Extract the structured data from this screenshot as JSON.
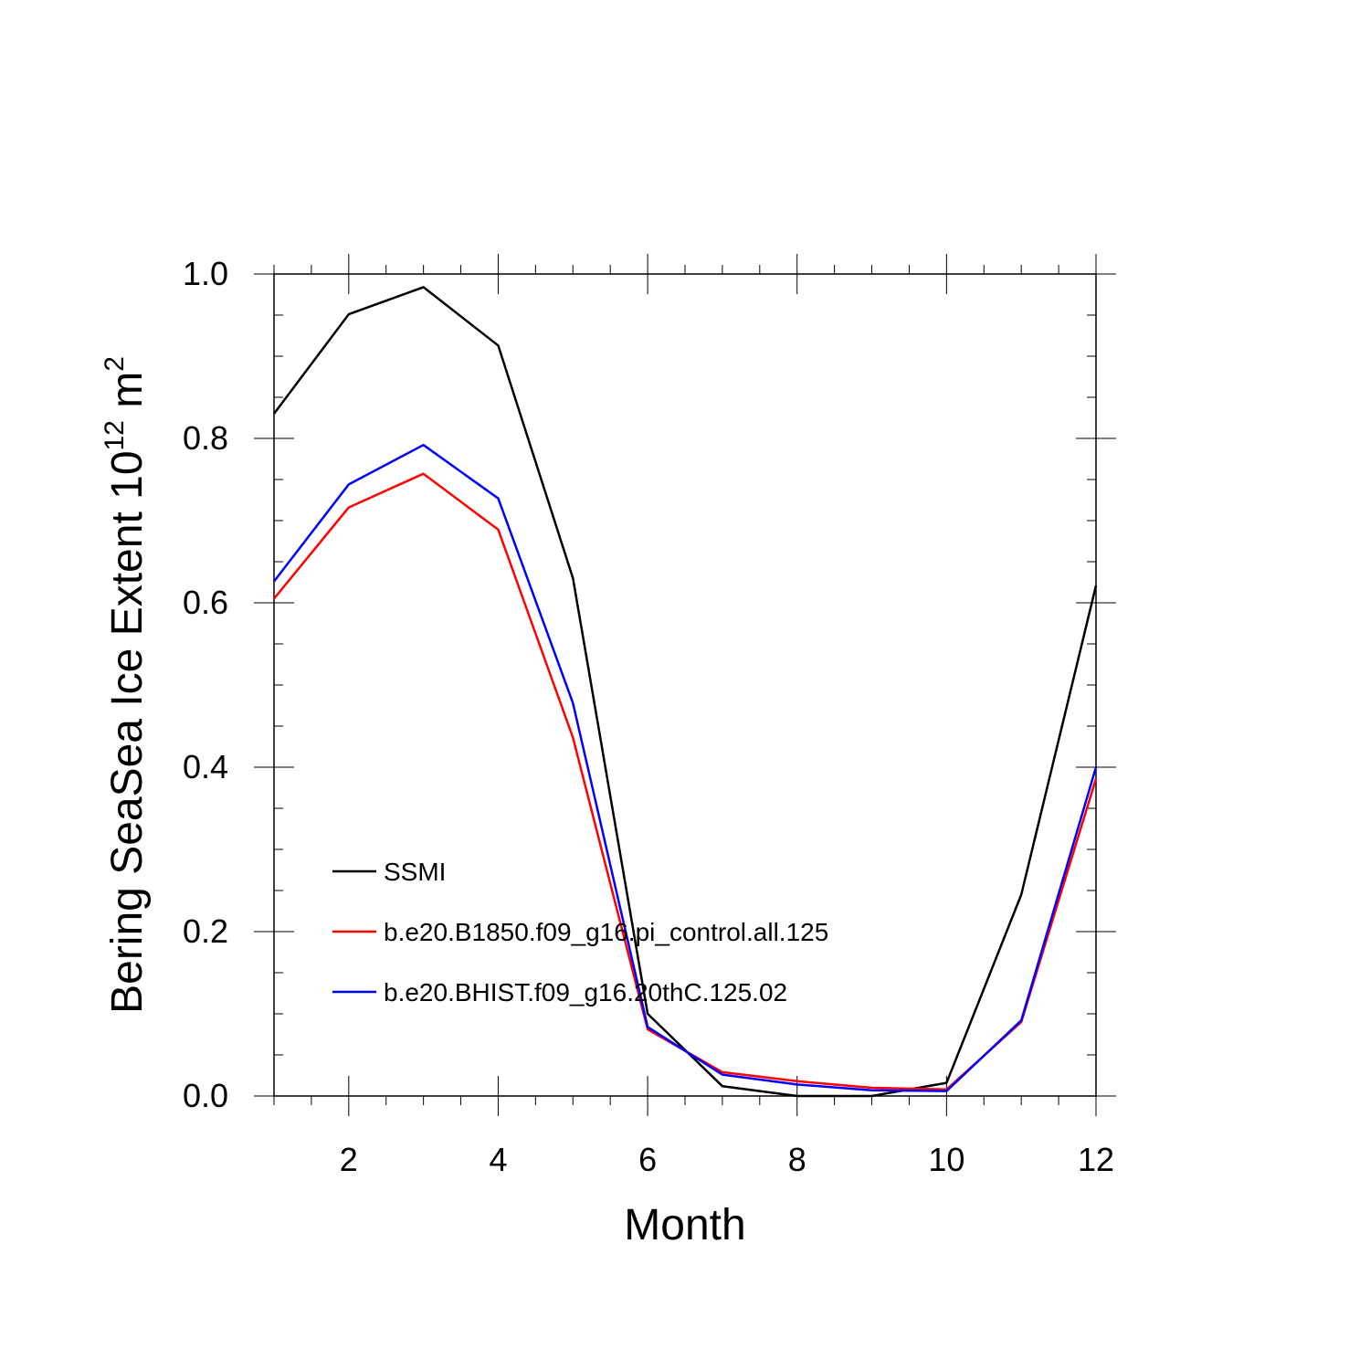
{
  "chart_data": {
    "type": "line",
    "title": "",
    "xlabel": "Month",
    "ylabel": {
      "main": "Bering SeaSea Ice Extent 10",
      "exp1": "12",
      "unit": " m",
      "exp2": "2"
    },
    "xlim": [
      1,
      12
    ],
    "ylim": [
      0,
      1
    ],
    "x_ticks": [
      "2",
      "4",
      "6",
      "8",
      "10",
      "12"
    ],
    "y_ticks": [
      "0.0",
      "0.2",
      "0.4",
      "0.6",
      "0.8",
      "1.0"
    ],
    "grid": false,
    "legend_position": "lower-left inside",
    "x": [
      1,
      2,
      3,
      4,
      5,
      6,
      7,
      8,
      9,
      10,
      11,
      12
    ],
    "series": [
      {
        "name": "SSMI",
        "color": "#000000",
        "values": [
          0.83,
          0.951,
          0.984,
          0.913,
          0.63,
          0.1,
          0.012,
          0.0,
          0.0,
          0.016,
          0.245,
          0.621
        ]
      },
      {
        "name": "b.e20.B1850.f09_g16.pi_control.all.125",
        "color": "#ff0000",
        "values": [
          0.605,
          0.716,
          0.757,
          0.689,
          0.436,
          0.081,
          0.029,
          0.018,
          0.01,
          0.008,
          0.09,
          0.386
        ]
      },
      {
        "name": "b.e20.BHIST.f09_g16.20thC.125.02",
        "color": "#0000ff",
        "values": [
          0.626,
          0.744,
          0.792,
          0.727,
          0.478,
          0.084,
          0.026,
          0.014,
          0.007,
          0.006,
          0.092,
          0.4
        ]
      }
    ]
  }
}
